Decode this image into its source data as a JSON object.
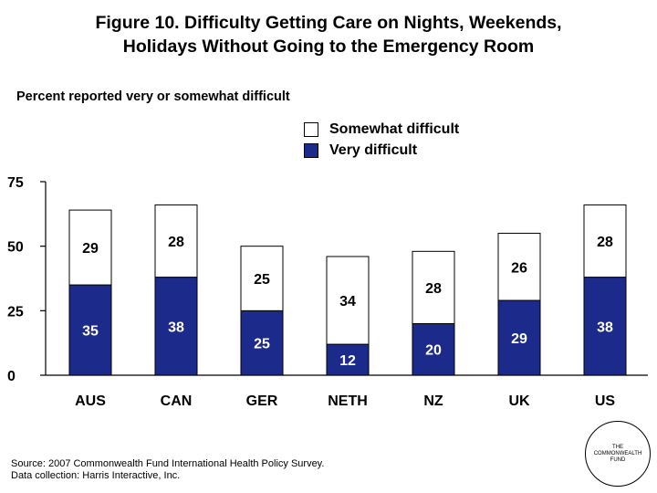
{
  "title_line1": "Figure 10. Difficulty Getting Care on Nights, Weekends,",
  "title_line2": "Holidays Without Going to the Emergency Room",
  "source_line1": "Source: 2007 Commonwealth Fund International Health Policy Survey.",
  "source_line2": "Data collection: Harris Interactive, Inc.",
  "logo_text": "THE\nCOMMONWEALTH\nFUND",
  "colors": {
    "very": "#1c2a8c",
    "somewhat": "#ffffff"
  },
  "chart_data": {
    "type": "bar",
    "stacked": true,
    "title": "Figure 10. Difficulty Getting Care on Nights, Weekends, Holidays Without Going to the Emergency Room",
    "ylabel": "Percent reported very or somewhat difficult",
    "xlabel": "",
    "categories": [
      "AUS",
      "CAN",
      "GER",
      "NETH",
      "NZ",
      "UK",
      "US"
    ],
    "ylim": [
      0,
      75
    ],
    "yticks": [
      0,
      25,
      50,
      75
    ],
    "series": [
      {
        "name": "Very difficult",
        "values": [
          35,
          38,
          25,
          12,
          20,
          29,
          38
        ],
        "color": "#1c2a8c",
        "label_color": "#ffffff"
      },
      {
        "name": "Somewhat difficult",
        "values": [
          29,
          28,
          25,
          34,
          28,
          26,
          28
        ],
        "color": "#ffffff",
        "label_color": "#000000"
      }
    ],
    "legend": [
      "Somewhat difficult",
      "Very difficult"
    ],
    "legend_position": "top-right",
    "grid": false
  }
}
